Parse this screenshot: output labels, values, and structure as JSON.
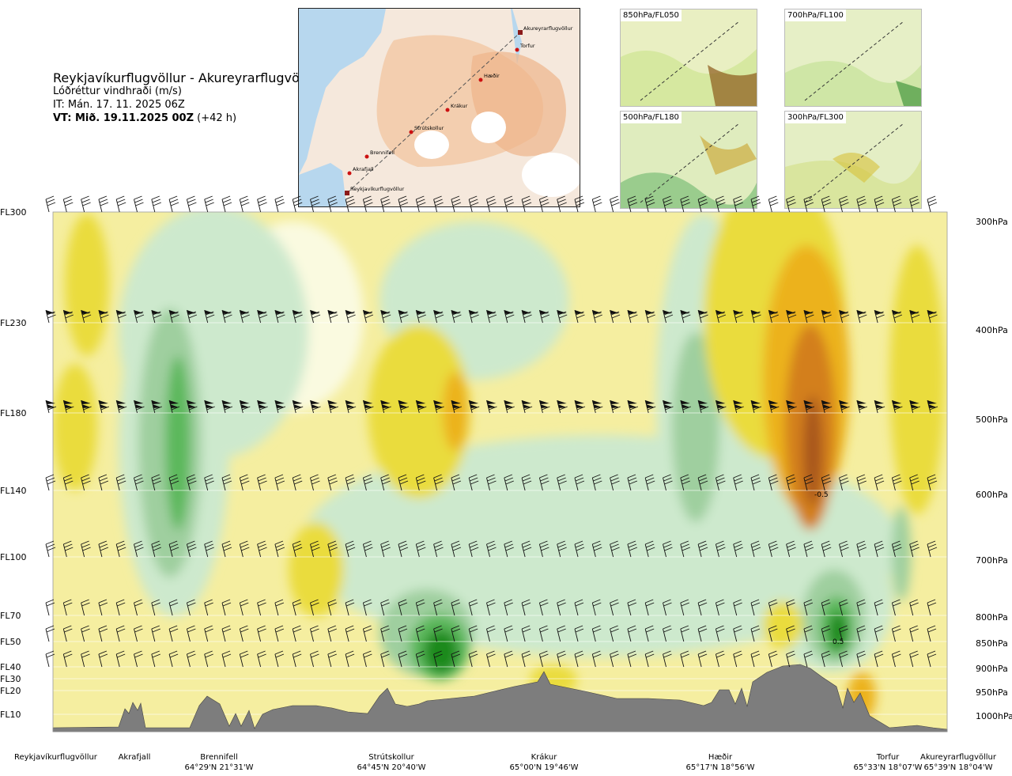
{
  "header": {
    "route": "Reykjavíkurflugvöllur - Akureyrarflugvöllur",
    "quantity": "Lóðréttur vindhraði (m/s)",
    "issue_time": "IT: Mán. 17. 11. 2025 06Z",
    "valid_time_prefix": "VT: Mið. 19.11.2025 00Z",
    "valid_time_suffix": "(+42 h)"
  },
  "route_map": {
    "points": [
      {
        "name": "Akureyrarflugvöllur"
      },
      {
        "name": "Torfur"
      },
      {
        "name": "Hæðir"
      },
      {
        "name": "Krákur"
      },
      {
        "name": "Strútskollur"
      },
      {
        "name": "Brennifell"
      },
      {
        "name": "Akrafjall"
      },
      {
        "name": "Reykjavíkurflugvöllur"
      }
    ],
    "colors": {
      "sea": "#b7d7ee",
      "land": "#f3c9a4",
      "glacier": "#ffffff",
      "route": "#cc1111"
    }
  },
  "thumbnails": [
    {
      "label": "850hPa/FL050"
    },
    {
      "label": "700hPa/FL100"
    },
    {
      "label": "500hPa/FL180"
    },
    {
      "label": "300hPa/FL300"
    }
  ],
  "chart_data": {
    "type": "heatmap",
    "title": "Lóðréttur vindhraði (m/s)",
    "levels": [
      {
        "fl": "FL300",
        "hpa": "300hPa"
      },
      {
        "fl": "FL230",
        "hpa": "400hPa"
      },
      {
        "fl": "FL180",
        "hpa": "500hPa"
      },
      {
        "fl": "FL140",
        "hpa": "600hPa"
      },
      {
        "fl": "FL100",
        "hpa": "700hPa"
      },
      {
        "fl": "FL70",
        "hpa": "800hPa"
      },
      {
        "fl": "FL50",
        "hpa": "850hPa"
      },
      {
        "fl": "FL40",
        "hpa": "900hPa"
      },
      {
        "fl": "FL30",
        "hpa": ""
      },
      {
        "fl": "FL20",
        "hpa": "950hPa"
      },
      {
        "fl": "FL10",
        "hpa": "1000hPa"
      }
    ],
    "locations": [
      {
        "name": "Reykjavíkurflugvöllur",
        "coords": ""
      },
      {
        "name": "Akrafjall",
        "coords": ""
      },
      {
        "name": "Brennifell",
        "coords": "64°29'N 21°31'W"
      },
      {
        "name": "Strútskollur",
        "coords": "64°45'N 20°40'W"
      },
      {
        "name": "Krákur",
        "coords": "65°00'N 19°46'W"
      },
      {
        "name": "Hæðir",
        "coords": "65°17'N 18°56'W"
      },
      {
        "name": "Torfur",
        "coords": "65°33'N 18°07'W"
      },
      {
        "name": "Akureyrarflugvöllur",
        "coords": "65°39'N 18°04'W"
      }
    ],
    "annotations": [
      "-0.5",
      "0.5"
    ],
    "colors": {
      "up_strong": "#1a8a1a",
      "up_med": "#5cb85c",
      "up_weak": "#9fcf9f",
      "up_faint": "#cde9cd",
      "neutral": "#fafae0",
      "down_faint": "#f5eea0",
      "down_weak": "#eadc3c",
      "down_med": "#ecb21c",
      "down_strong": "#d37f1e",
      "down_max": "#a8561a",
      "terrain": "#7d7d7d"
    }
  }
}
